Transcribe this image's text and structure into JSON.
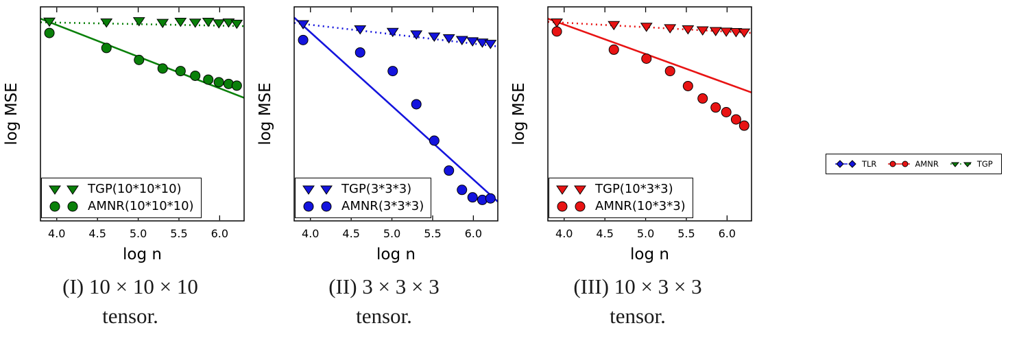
{
  "outer_legend": {
    "items": [
      {
        "label": "TLR",
        "color": "#1414dd",
        "marker": "diamond",
        "line": "dashed"
      },
      {
        "label": "AMNR",
        "color": "#e81414",
        "marker": "circle",
        "line": "solid"
      },
      {
        "label": "TGP",
        "color": "#0a800a",
        "marker": "triangle-down",
        "line": "dotted"
      }
    ]
  },
  "chart_data": [
    {
      "type": "scatter",
      "title": "(I) 10 × 10 × 10 tensor.",
      "caption": [
        "(I) 10 × 10 × 10",
        "tensor."
      ],
      "xlabel": "log n",
      "ylabel": "log MSE",
      "xlim": [
        3.8,
        6.3
      ],
      "ylim": [
        0,
        1
      ],
      "x_ticks": [
        "4.0",
        "4.5",
        "5.0",
        "5.5",
        "6.0"
      ],
      "legend_position": "lower-left",
      "color": "#0a800a",
      "x": [
        3.91,
        4.61,
        5.01,
        5.3,
        5.52,
        5.7,
        5.86,
        5.99,
        6.11,
        6.21
      ],
      "series": [
        {
          "name": "TGP(10*10*10)",
          "marker": "triangle-down",
          "fit_line": "dotted",
          "values": [
            0.932,
            0.928,
            0.934,
            0.926,
            0.931,
            0.927,
            0.931,
            0.924,
            0.928,
            0.922
          ],
          "fit": {
            "x": [
              3.8,
              6.3
            ],
            "y": [
              0.928,
              0.91
            ]
          }
        },
        {
          "name": "AMNR(10*10*10)",
          "marker": "circle",
          "fit_line": "solid",
          "values": [
            0.878,
            0.808,
            0.752,
            0.712,
            0.7,
            0.678,
            0.66,
            0.648,
            0.64,
            0.632
          ],
          "fit": {
            "x": [
              3.8,
              6.3
            ],
            "y": [
              0.945,
              0.575
            ]
          }
        }
      ]
    },
    {
      "type": "scatter",
      "title": "(II) 3 × 3 × 3 tensor.",
      "caption": [
        "(II) 3 × 3 × 3",
        "tensor."
      ],
      "xlabel": "log n",
      "ylabel": "log MSE",
      "xlim": [
        3.8,
        6.3
      ],
      "ylim": [
        0,
        1
      ],
      "x_ticks": [
        "4.0",
        "4.5",
        "5.0",
        "5.5",
        "6.0"
      ],
      "legend_position": "lower-left",
      "color": "#1414dd",
      "x": [
        3.91,
        4.61,
        5.01,
        5.3,
        5.52,
        5.7,
        5.86,
        5.99,
        6.11,
        6.21
      ],
      "series": [
        {
          "name": "TGP(3*3*3)",
          "marker": "triangle-down",
          "fit_line": "dotted",
          "values": [
            0.92,
            0.896,
            0.884,
            0.872,
            0.862,
            0.854,
            0.846,
            0.84,
            0.834,
            0.828
          ],
          "fit": {
            "x": [
              3.8,
              6.3
            ],
            "y": [
              0.925,
              0.815
            ]
          }
        },
        {
          "name": "AMNR(3*3*3)",
          "marker": "circle",
          "fit_line": "solid",
          "values": [
            0.845,
            0.787,
            0.7,
            0.545,
            0.375,
            0.235,
            0.145,
            0.11,
            0.098,
            0.105
          ],
          "fit": {
            "x": [
              3.8,
              6.3
            ],
            "y": [
              0.95,
              0.09
            ]
          }
        }
      ]
    },
    {
      "type": "scatter",
      "title": "(III) 10 × 3 × 3 tensor.",
      "caption": [
        "(III) 10 × 3 × 3",
        "tensor."
      ],
      "xlabel": "log n",
      "ylabel": "log MSE",
      "xlim": [
        3.8,
        6.3
      ],
      "ylim": [
        0,
        1
      ],
      "x_ticks": [
        "4.0",
        "4.5",
        "5.0",
        "5.5",
        "6.0"
      ],
      "legend_position": "lower-left",
      "color": "#e81414",
      "x": [
        3.91,
        4.61,
        5.01,
        5.3,
        5.52,
        5.7,
        5.86,
        5.99,
        6.11,
        6.21
      ],
      "series": [
        {
          "name": "TGP(10*3*3)",
          "marker": "triangle-down",
          "fit_line": "dotted",
          "values": [
            0.928,
            0.916,
            0.908,
            0.901,
            0.896,
            0.891,
            0.888,
            0.885,
            0.883,
            0.881
          ],
          "fit": {
            "x": [
              3.8,
              6.3
            ],
            "y": [
              0.93,
              0.878
            ]
          }
        },
        {
          "name": "AMNR(10*3*3)",
          "marker": "circle",
          "fit_line": "solid",
          "values": [
            0.885,
            0.8,
            0.758,
            0.7,
            0.63,
            0.572,
            0.53,
            0.508,
            0.474,
            0.445
          ],
          "fit": {
            "x": [
              3.8,
              6.3
            ],
            "y": [
              0.945,
              0.6
            ]
          }
        }
      ]
    }
  ]
}
